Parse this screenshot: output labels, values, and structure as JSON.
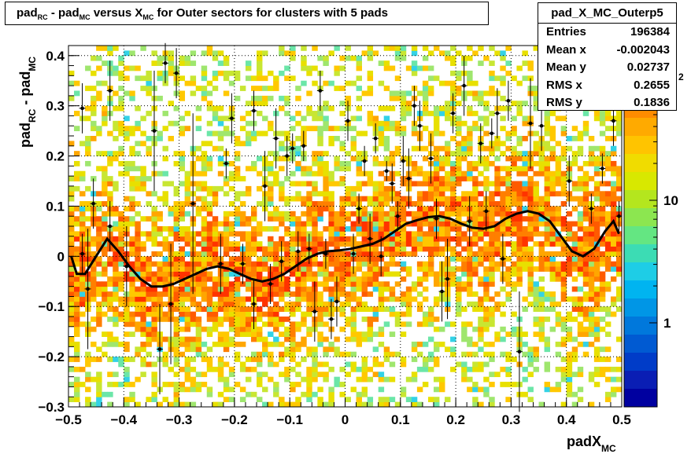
{
  "title": {
    "part1": "pad",
    "sub1": "RC",
    "part2": " - pad",
    "sub2": "MC",
    "part3": " versus X",
    "sub3": "MC",
    "part4": " for Outer sectors for clusters with 5 pads"
  },
  "stats": {
    "name": "pad_X_MC_Outerp5",
    "rows": [
      {
        "label": "Entries",
        "value": "196384"
      },
      {
        "label": "Mean x",
        "value": "-0.002043"
      },
      {
        "label": "Mean y",
        "value": "0.02737"
      },
      {
        "label": "RMS x",
        "value": "0.2655"
      },
      {
        "label": "RMS y",
        "value": "0.1836"
      }
    ]
  },
  "chart_data": {
    "type": "heatmap",
    "xlabel": {
      "main": "padX",
      "sub": "MC"
    },
    "ylabel": {
      "main1": "pad",
      "sub1": "RC",
      "main2": " - pad",
      "sub2": "MC"
    },
    "xlim": [
      -0.5,
      0.5
    ],
    "ylim": [
      -0.3,
      0.42
    ],
    "x_ticks": [
      {
        "v": -0.5,
        "label": "−0.5"
      },
      {
        "v": -0.4,
        "label": "−0.4"
      },
      {
        "v": -0.3,
        "label": "−0.3"
      },
      {
        "v": -0.2,
        "label": "−0.2"
      },
      {
        "v": -0.1,
        "label": "−0.1"
      },
      {
        "v": 0,
        "label": "0"
      },
      {
        "v": 0.1,
        "label": "0.1"
      },
      {
        "v": 0.2,
        "label": "0.2"
      },
      {
        "v": 0.3,
        "label": "0.3"
      },
      {
        "v": 0.4,
        "label": "0.4"
      },
      {
        "v": 0.5,
        "label": "0.5"
      }
    ],
    "y_ticks": [
      {
        "v": -0.3,
        "label": "−0.3"
      },
      {
        "v": -0.2,
        "label": "−0.2"
      },
      {
        "v": -0.1,
        "label": "−0.1"
      },
      {
        "v": 0,
        "label": "0"
      },
      {
        "v": 0.1,
        "label": "0.1"
      },
      {
        "v": 0.2,
        "label": "0.2"
      },
      {
        "v": 0.3,
        "label": "0.3"
      },
      {
        "v": 0.4,
        "label": "0.4"
      }
    ],
    "colorbar": {
      "scale": "log",
      "labels": [
        {
          "v": 1,
          "label": "1"
        },
        {
          "v": 10,
          "label": "10"
        }
      ],
      "partial_label": "2"
    },
    "grid": true,
    "profile_points": [
      {
        "x": -0.475,
        "y": 0.295,
        "e": 0.05
      },
      {
        "x": -0.475,
        "y": 0.005,
        "e": 0.04
      },
      {
        "x": -0.465,
        "y": -0.065,
        "e": 0.12
      },
      {
        "x": -0.455,
        "y": 0.105,
        "e": 0.05
      },
      {
        "x": -0.425,
        "y": 0.33,
        "e": 0.06
      },
      {
        "x": -0.425,
        "y": 0.06,
        "e": 0.05
      },
      {
        "x": -0.395,
        "y": -0.02,
        "e": 0.08
      },
      {
        "x": -0.345,
        "y": 0.25,
        "e": 0.12
      },
      {
        "x": -0.335,
        "y": -0.185,
        "e": 0.09
      },
      {
        "x": -0.325,
        "y": 0.385,
        "e": 0.04
      },
      {
        "x": -0.315,
        "y": -0.095,
        "e": 0.12
      },
      {
        "x": -0.305,
        "y": 0.365,
        "e": 0.05
      },
      {
        "x": -0.275,
        "y": 0.105,
        "e": 0.18
      },
      {
        "x": -0.225,
        "y": -0.015,
        "e": 0.06
      },
      {
        "x": -0.215,
        "y": 0.185,
        "e": 0.03
      },
      {
        "x": -0.205,
        "y": 0.275,
        "e": 0.05
      },
      {
        "x": -0.185,
        "y": -0.015,
        "e": 0.04
      },
      {
        "x": -0.165,
        "y": 0.29,
        "e": 0.04
      },
      {
        "x": -0.165,
        "y": -0.095,
        "e": 0.05
      },
      {
        "x": -0.145,
        "y": 0.14,
        "e": 0.07
      },
      {
        "x": -0.135,
        "y": -0.055,
        "e": 0.04
      },
      {
        "x": -0.125,
        "y": 0.235,
        "e": 0.06
      },
      {
        "x": -0.115,
        "y": -0.01,
        "e": 0.04
      },
      {
        "x": -0.105,
        "y": 0.2,
        "e": 0.04
      },
      {
        "x": -0.095,
        "y": 0.215,
        "e": 0.03
      },
      {
        "x": -0.085,
        "y": 0.01,
        "e": 0.04
      },
      {
        "x": -0.075,
        "y": 0.22,
        "e": 0.03
      },
      {
        "x": -0.065,
        "y": 0.015,
        "e": 0.03
      },
      {
        "x": -0.055,
        "y": -0.11,
        "e": 0.06
      },
      {
        "x": -0.045,
        "y": 0.33,
        "e": 0.04
      },
      {
        "x": -0.035,
        "y": 0.005,
        "e": 0.03
      },
      {
        "x": -0.025,
        "y": -0.125,
        "e": 0.04
      },
      {
        "x": -0.015,
        "y": -0.09,
        "e": 0.05
      },
      {
        "x": 0.005,
        "y": 0.27,
        "e": 0.04
      },
      {
        "x": 0.015,
        "y": 0.005,
        "e": 0.04
      },
      {
        "x": 0.025,
        "y": 0.095,
        "e": 0.03
      },
      {
        "x": 0.035,
        "y": 0.19,
        "e": 0.03
      },
      {
        "x": 0.045,
        "y": 0.035,
        "e": 0.05
      },
      {
        "x": 0.055,
        "y": 0.235,
        "e": 0.03
      },
      {
        "x": 0.065,
        "y": 0.0,
        "e": 0.04
      },
      {
        "x": 0.075,
        "y": 0.17,
        "e": 0.02
      },
      {
        "x": 0.085,
        "y": 0.145,
        "e": 0.04
      },
      {
        "x": 0.095,
        "y": 0.08,
        "e": 0.03
      },
      {
        "x": 0.105,
        "y": 0.19,
        "e": 0.05
      },
      {
        "x": 0.115,
        "y": 0.155,
        "e": 0.06
      },
      {
        "x": 0.125,
        "y": 0.3,
        "e": 0.04
      },
      {
        "x": 0.135,
        "y": 0.26,
        "e": 0.05
      },
      {
        "x": 0.155,
        "y": 0.195,
        "e": 0.05
      },
      {
        "x": 0.165,
        "y": 0.075,
        "e": 0.04
      },
      {
        "x": 0.175,
        "y": -0.07,
        "e": 0.06
      },
      {
        "x": 0.185,
        "y": -0.045,
        "e": 0.08
      },
      {
        "x": 0.195,
        "y": 0.285,
        "e": 0.04
      },
      {
        "x": 0.215,
        "y": 0.34,
        "e": 0.06
      },
      {
        "x": 0.225,
        "y": 0.07,
        "e": 0.05
      },
      {
        "x": 0.245,
        "y": 0.225,
        "e": 0.04
      },
      {
        "x": 0.255,
        "y": 0.09,
        "e": 0.04
      },
      {
        "x": 0.265,
        "y": 0.245,
        "e": 0.03
      },
      {
        "x": 0.275,
        "y": 0.285,
        "e": 0.05
      },
      {
        "x": 0.285,
        "y": -0.005,
        "e": 0.05
      },
      {
        "x": 0.295,
        "y": 0.31,
        "e": 0.04
      },
      {
        "x": 0.315,
        "y": -0.19,
        "e": 0.12
      },
      {
        "x": 0.335,
        "y": 0.265,
        "e": 0.09
      },
      {
        "x": 0.355,
        "y": 0.26,
        "e": 0.05
      },
      {
        "x": 0.395,
        "y": 0.375,
        "e": 0.05
      },
      {
        "x": 0.405,
        "y": 0.15,
        "e": 0.05
      },
      {
        "x": 0.425,
        "y": 0.355,
        "e": 0.05
      },
      {
        "x": 0.445,
        "y": 0.095,
        "e": 0.03
      },
      {
        "x": 0.465,
        "y": 0.175,
        "e": 0.03
      },
      {
        "x": 0.485,
        "y": 0.27,
        "e": 0.05
      },
      {
        "x": 0.495,
        "y": 0.08,
        "e": 0.03
      }
    ],
    "fit_curve": [
      [
        -0.495,
        0.0
      ],
      [
        -0.485,
        -0.035
      ],
      [
        -0.47,
        -0.035
      ],
      [
        -0.45,
        0.0
      ],
      [
        -0.43,
        0.035
      ],
      [
        -0.41,
        0.01
      ],
      [
        -0.39,
        -0.02
      ],
      [
        -0.37,
        -0.045
      ],
      [
        -0.35,
        -0.06
      ],
      [
        -0.33,
        -0.06
      ],
      [
        -0.31,
        -0.055
      ],
      [
        -0.29,
        -0.045
      ],
      [
        -0.27,
        -0.035
      ],
      [
        -0.25,
        -0.025
      ],
      [
        -0.23,
        -0.02
      ],
      [
        -0.21,
        -0.025
      ],
      [
        -0.19,
        -0.035
      ],
      [
        -0.17,
        -0.045
      ],
      [
        -0.15,
        -0.05
      ],
      [
        -0.13,
        -0.045
      ],
      [
        -0.11,
        -0.035
      ],
      [
        -0.09,
        -0.02
      ],
      [
        -0.07,
        -0.005
      ],
      [
        -0.05,
        0.005
      ],
      [
        -0.03,
        0.01
      ],
      [
        -0.01,
        0.012
      ],
      [
        0.01,
        0.015
      ],
      [
        0.03,
        0.02
      ],
      [
        0.05,
        0.025
      ],
      [
        0.07,
        0.035
      ],
      [
        0.09,
        0.05
      ],
      [
        0.11,
        0.065
      ],
      [
        0.13,
        0.072
      ],
      [
        0.15,
        0.078
      ],
      [
        0.17,
        0.08
      ],
      [
        0.19,
        0.075
      ],
      [
        0.21,
        0.065
      ],
      [
        0.23,
        0.057
      ],
      [
        0.25,
        0.055
      ],
      [
        0.27,
        0.06
      ],
      [
        0.29,
        0.075
      ],
      [
        0.31,
        0.085
      ],
      [
        0.33,
        0.09
      ],
      [
        0.35,
        0.085
      ],
      [
        0.37,
        0.07
      ],
      [
        0.39,
        0.04
      ],
      [
        0.41,
        0.01
      ],
      [
        0.43,
        0.0
      ],
      [
        0.45,
        0.015
      ],
      [
        0.47,
        0.05
      ],
      [
        0.485,
        0.07
      ],
      [
        0.495,
        0.045
      ]
    ]
  }
}
